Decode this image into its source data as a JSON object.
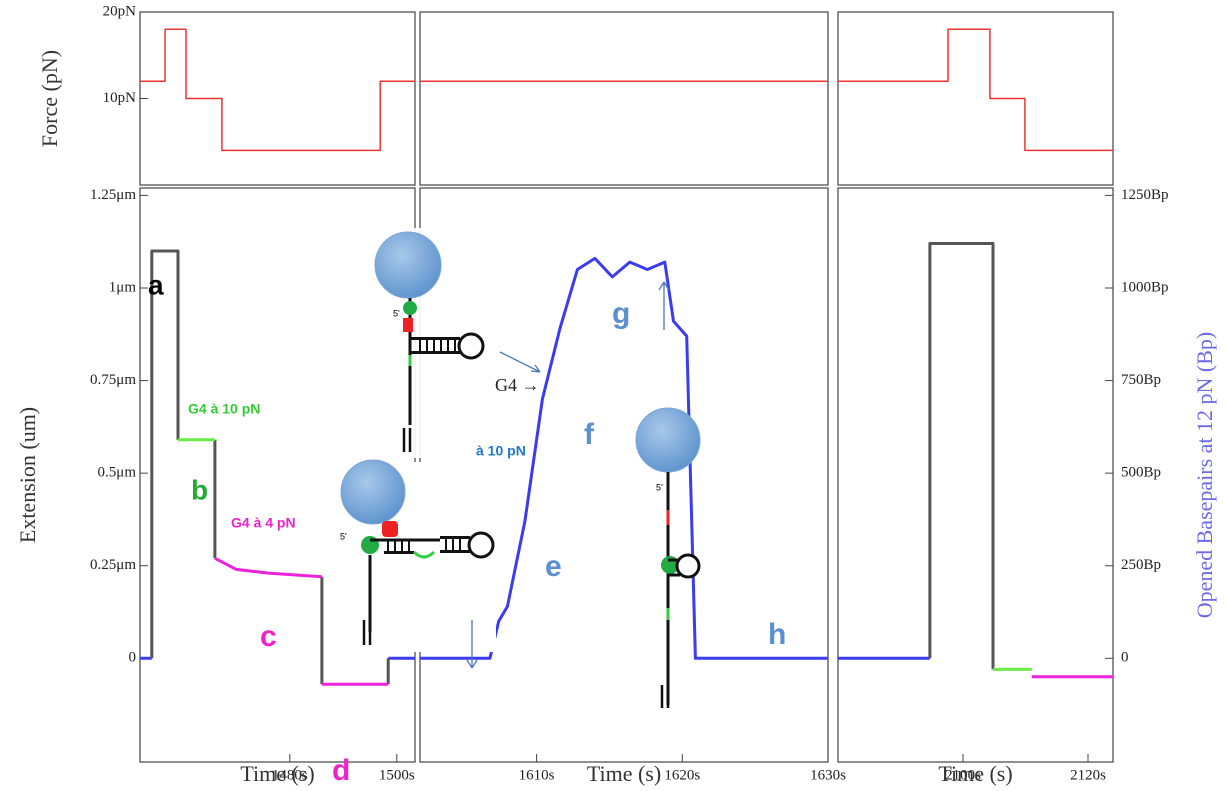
{
  "chart_data": [
    {
      "type": "line",
      "ylabel": "Force (pN)",
      "xlim": [
        1452,
        1503.4
      ],
      "ylim": [
        0,
        20
      ],
      "yticks": [
        {
          "value": 10,
          "label": "10pN"
        },
        {
          "value": 20,
          "label": "20pN"
        }
      ],
      "series": [
        {
          "color": "#ee3333",
          "x": [
            1452,
            1456.7,
            1456.7,
            1460.6,
            1460.6,
            1467.3,
            1467.3,
            1496.9,
            1496.9,
            1503.4
          ],
          "values": [
            12,
            12,
            18,
            18,
            10,
            10,
            4,
            4,
            12,
            12
          ]
        }
      ]
    },
    {
      "type": "line",
      "xlim": [
        1602,
        1630
      ],
      "ylim": [
        0,
        20
      ],
      "series": [
        {
          "color": "#ee3333",
          "x": [
            1602,
            1630
          ],
          "values": [
            12,
            12
          ]
        }
      ]
    },
    {
      "type": "line",
      "xlim": [
        2080,
        2124
      ],
      "ylim": [
        0,
        20
      ],
      "series": [
        {
          "color": "#ee3333",
          "x": [
            2080,
            2097.6,
            2097.6,
            2104.3,
            2104.3,
            2109.9,
            2109.9,
            2124
          ],
          "values": [
            12,
            12,
            18,
            18,
            10,
            10,
            4,
            4
          ]
        }
      ]
    },
    {
      "type": "line",
      "ylabel": "Extension (um)",
      "xlabel": "Time (s)",
      "xlim": [
        1452,
        1503.4
      ],
      "ylim": [
        -0.28,
        1.27
      ],
      "xticks": [
        {
          "value": 1480,
          "label": "1480s"
        },
        {
          "value": 1500,
          "label": "1500s"
        }
      ],
      "yticks": [
        0,
        {
          "value": 0.25,
          "label": "0.25μm"
        },
        {
          "value": 0.5,
          "label": "0.5μm"
        },
        {
          "value": 0.75,
          "label": "0.75μm"
        },
        {
          "value": 1,
          "label": "1μm"
        },
        {
          "value": 1.25,
          "label": "1.25μm"
        }
      ],
      "series": [
        {
          "color": "#3b3bf0",
          "x": [
            1452,
            1454.2,
            1498.4,
            1498.4,
            1503.4
          ],
          "values": [
            0,
            0,
            null,
            0,
            0
          ]
        },
        {
          "color": "#555555",
          "x": [
            1454.2,
            1454.2,
            1459.1,
            1459.1,
            1466,
            1466,
            1466,
            1486,
            1486,
            1486,
            1498.4,
            1498.4,
            1498.4
          ],
          "values": [
            0,
            1.1,
            1.1,
            0.59,
            null,
            0.59,
            0.27,
            null,
            0.22,
            -0.07,
            null,
            -0.07,
            0
          ]
        },
        {
          "color": "#66ee44",
          "x": [
            1459.1,
            1466
          ],
          "values": [
            0.59,
            0.59
          ]
        },
        {
          "color": "#ee22dd",
          "x": [
            1466,
            1470,
            1476,
            1486,
            1486,
            1486,
            1498.4
          ],
          "values": [
            0.27,
            0.24,
            0.23,
            0.22,
            null,
            -0.07,
            -0.07
          ]
        }
      ]
    },
    {
      "type": "line",
      "xlabel": "Time (s)",
      "xlim": [
        1602,
        1630
      ],
      "ylim": [
        -0.28,
        1.27
      ],
      "xticks": [
        {
          "value": 1610,
          "label": "1610s"
        },
        {
          "value": 1620,
          "label": "1620s"
        },
        {
          "value": 1630,
          "label": "1630s"
        }
      ],
      "series": [
        {
          "color": "#3b3bf0",
          "x": [
            1602,
            1606.8,
            1607.4,
            1608,
            1609.2,
            1610.4,
            1611.6,
            1612.8,
            1614,
            1615.2,
            1616.4,
            1617.6,
            1618.8,
            1619.4,
            1620.3,
            1620.9,
            1630
          ],
          "values": [
            0,
            0,
            0.1,
            0.14,
            0.37,
            0.7,
            0.89,
            1.05,
            1.08,
            1.03,
            1.07,
            1.05,
            1.07,
            0.91,
            0.87,
            0,
            0
          ]
        }
      ]
    },
    {
      "type": "line",
      "xlabel": "Time (s)",
      "y2label": "Opened Basepairs at 12 pN (Bp)",
      "xlim": [
        2080,
        2124
      ],
      "ylim": [
        -0.28,
        1.27
      ],
      "y2lim": [
        -280,
        1270
      ],
      "xticks": [
        {
          "value": 2100,
          "label": "2100s"
        },
        {
          "value": 2120,
          "label": "2120s"
        }
      ],
      "y2ticks": [
        0,
        {
          "value": 250,
          "label": "250Bp"
        },
        {
          "value": 500,
          "label": "500Bp"
        },
        {
          "value": 750,
          "label": "750Bp"
        },
        {
          "value": 1000,
          "label": "1000Bp"
        },
        {
          "value": 1250,
          "label": "1250Bp"
        }
      ],
      "series": [
        {
          "color": "#3b3bf0",
          "x": [
            2080,
            2094.7
          ],
          "values": [
            0,
            0
          ]
        },
        {
          "color": "#555555",
          "x": [
            2094.7,
            2094.7,
            2104.8,
            2104.8
          ],
          "values": [
            0,
            1.12,
            1.12,
            -0.03
          ]
        },
        {
          "color": "#66ee44",
          "x": [
            2104.8,
            2111
          ],
          "values": [
            -0.03,
            -0.03
          ]
        },
        {
          "color": "#ee22dd",
          "x": [
            2111,
            2124
          ],
          "values": [
            -0.05,
            -0.05
          ]
        }
      ]
    }
  ],
  "annotations": [
    {
      "text": "a",
      "color": "#000000"
    },
    {
      "text": "G4 à 10 pN",
      "color": "#33cc33"
    },
    {
      "text": "b",
      "color": "#22aa33"
    },
    {
      "text": "G4 à 4 pN",
      "color": "#ee22cc"
    },
    {
      "text": "c",
      "color": "#ee22cc"
    },
    {
      "text": "d",
      "color": "#ee22cc"
    },
    {
      "text": "G4 →",
      "color": "#222222"
    },
    {
      "text": "à 10 pN",
      "color": "#2277cc"
    },
    {
      "text": "f",
      "color": "#5a8fd0"
    },
    {
      "text": "e",
      "color": "#5a8fd0"
    },
    {
      "text": "g",
      "color": "#5a8fd0"
    },
    {
      "text": "h",
      "color": "#5a8fd0"
    }
  ]
}
